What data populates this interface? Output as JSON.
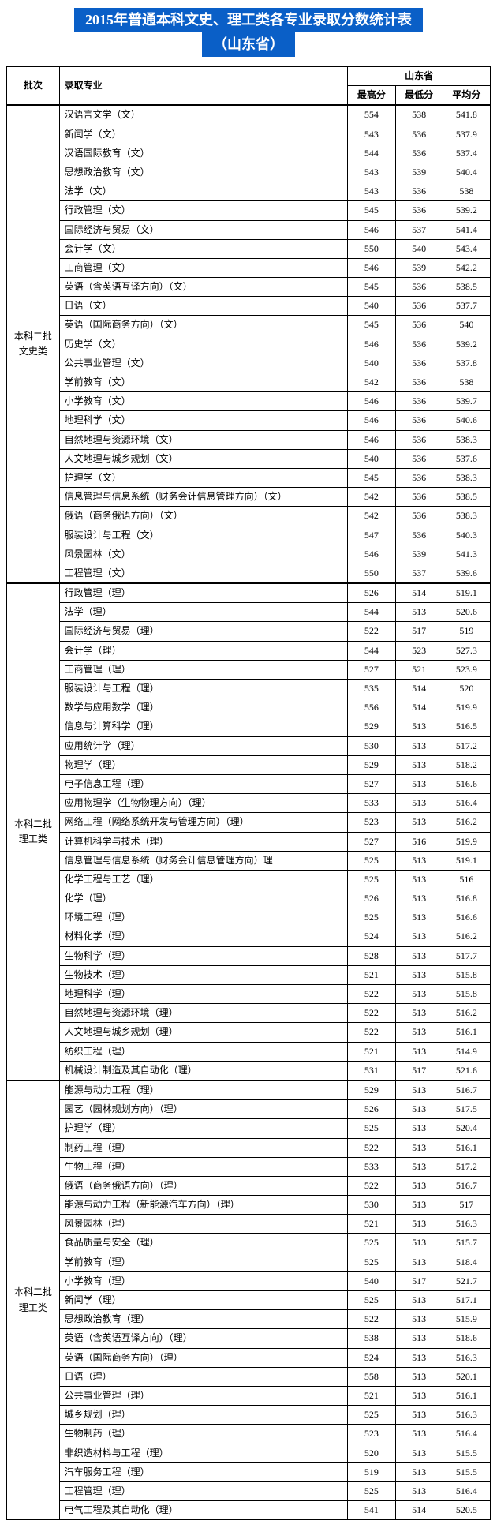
{
  "title_line1": "2015年普通本科文史、理工类各专业录取分数统计表",
  "title_line2": "（山东省）",
  "headers": {
    "batch": "批次",
    "major": "录取专业",
    "province": "山东省",
    "max": "最高分",
    "min": "最低分",
    "avg": "平均分"
  },
  "colors": {
    "title_bg": "#0a5fc7",
    "title_fg": "#ffffff",
    "border": "#000000",
    "bg": "#ffffff"
  },
  "groups": [
    {
      "batch": "本科二批\n文史类",
      "rows": [
        {
          "major": "汉语言文学（文）",
          "max": "554",
          "min": "538",
          "avg": "541.8"
        },
        {
          "major": "新闻学（文）",
          "max": "543",
          "min": "536",
          "avg": "537.9"
        },
        {
          "major": "汉语国际教育（文）",
          "max": "544",
          "min": "536",
          "avg": "537.4"
        },
        {
          "major": "思想政治教育（文）",
          "max": "543",
          "min": "539",
          "avg": "540.4"
        },
        {
          "major": "法学（文）",
          "max": "543",
          "min": "536",
          "avg": "538"
        },
        {
          "major": "行政管理（文）",
          "max": "545",
          "min": "536",
          "avg": "539.2"
        },
        {
          "major": "国际经济与贸易（文）",
          "max": "546",
          "min": "537",
          "avg": "541.4"
        },
        {
          "major": "会计学（文）",
          "max": "550",
          "min": "540",
          "avg": "543.4"
        },
        {
          "major": "工商管理（文）",
          "max": "546",
          "min": "539",
          "avg": "542.2"
        },
        {
          "major": "英语（含英语互译方向）（文）",
          "max": "545",
          "min": "536",
          "avg": "538.5"
        },
        {
          "major": "日语（文）",
          "max": "540",
          "min": "536",
          "avg": "537.7"
        },
        {
          "major": "英语（国际商务方向）（文）",
          "max": "545",
          "min": "536",
          "avg": "540"
        },
        {
          "major": "历史学（文）",
          "max": "546",
          "min": "536",
          "avg": "539.2"
        },
        {
          "major": "公共事业管理（文）",
          "max": "540",
          "min": "536",
          "avg": "537.8"
        },
        {
          "major": "学前教育（文）",
          "max": "542",
          "min": "536",
          "avg": "538"
        },
        {
          "major": "小学教育（文）",
          "max": "546",
          "min": "536",
          "avg": "539.7"
        },
        {
          "major": "地理科学（文）",
          "max": "546",
          "min": "536",
          "avg": "540.6"
        },
        {
          "major": "自然地理与资源环境（文）",
          "max": "546",
          "min": "536",
          "avg": "538.3"
        },
        {
          "major": "人文地理与城乡规划（文）",
          "max": "540",
          "min": "536",
          "avg": "537.6"
        },
        {
          "major": "护理学（文）",
          "max": "545",
          "min": "536",
          "avg": "538.3"
        },
        {
          "major": "信息管理与信息系统（财务会计信息管理方向）（文）",
          "max": "542",
          "min": "536",
          "avg": "538.5"
        },
        {
          "major": "俄语（商务俄语方向）（文）",
          "max": "542",
          "min": "536",
          "avg": "538.3"
        },
        {
          "major": "服装设计与工程（文）",
          "max": "547",
          "min": "536",
          "avg": "540.3"
        },
        {
          "major": "风景园林（文）",
          "max": "546",
          "min": "539",
          "avg": "541.3"
        },
        {
          "major": "工程管理（文）",
          "max": "550",
          "min": "537",
          "avg": "539.6"
        }
      ]
    },
    {
      "batch": "本科二批\n理工类",
      "rows": [
        {
          "major": "行政管理（理）",
          "max": "526",
          "min": "514",
          "avg": "519.1"
        },
        {
          "major": "法学（理）",
          "max": "544",
          "min": "513",
          "avg": "520.6"
        },
        {
          "major": "国际经济与贸易（理）",
          "max": "522",
          "min": "517",
          "avg": "519"
        },
        {
          "major": "会计学（理）",
          "max": "544",
          "min": "523",
          "avg": "527.3"
        },
        {
          "major": "工商管理（理）",
          "max": "527",
          "min": "521",
          "avg": "523.9"
        },
        {
          "major": "服装设计与工程（理）",
          "max": "535",
          "min": "514",
          "avg": "520"
        },
        {
          "major": "数学与应用数学（理）",
          "max": "556",
          "min": "514",
          "avg": "519.9"
        },
        {
          "major": "信息与计算科学（理）",
          "max": "529",
          "min": "513",
          "avg": "516.5"
        },
        {
          "major": "应用统计学（理）",
          "max": "530",
          "min": "513",
          "avg": "517.2"
        },
        {
          "major": "物理学（理）",
          "max": "529",
          "min": "513",
          "avg": "518.2"
        },
        {
          "major": "电子信息工程（理）",
          "max": "527",
          "min": "513",
          "avg": "516.6"
        },
        {
          "major": "应用物理学（生物物理方向）（理）",
          "max": "533",
          "min": "513",
          "avg": "516.4"
        },
        {
          "major": "网络工程（网络系统开发与管理方向）（理）",
          "max": "523",
          "min": "513",
          "avg": "516.2"
        },
        {
          "major": "计算机科学与技术（理）",
          "max": "527",
          "min": "516",
          "avg": "519.9"
        },
        {
          "major": "信息管理与信息系统（财务会计信息管理方向）理",
          "max": "525",
          "min": "513",
          "avg": "519.1"
        },
        {
          "major": "化学工程与工艺（理）",
          "max": "525",
          "min": "513",
          "avg": "516"
        },
        {
          "major": "化学（理）",
          "max": "526",
          "min": "513",
          "avg": "516.8"
        },
        {
          "major": "环境工程（理）",
          "max": "525",
          "min": "513",
          "avg": "516.6"
        },
        {
          "major": "材料化学（理）",
          "max": "524",
          "min": "513",
          "avg": "516.2"
        },
        {
          "major": "生物科学（理）",
          "max": "528",
          "min": "513",
          "avg": "517.7"
        },
        {
          "major": "生物技术（理）",
          "max": "521",
          "min": "513",
          "avg": "515.8"
        },
        {
          "major": "地理科学（理）",
          "max": "522",
          "min": "513",
          "avg": "515.8"
        },
        {
          "major": "自然地理与资源环境（理）",
          "max": "522",
          "min": "513",
          "avg": "516.2"
        },
        {
          "major": "人文地理与城乡规划（理）",
          "max": "522",
          "min": "513",
          "avg": "516.1"
        },
        {
          "major": "纺织工程（理）",
          "max": "521",
          "min": "513",
          "avg": "514.9"
        },
        {
          "major": "机械设计制造及其自动化（理）",
          "max": "531",
          "min": "517",
          "avg": "521.6"
        }
      ]
    },
    {
      "batch": "本科二批\n理工类",
      "rows": [
        {
          "major": "能源与动力工程（理）",
          "max": "529",
          "min": "513",
          "avg": "516.7"
        },
        {
          "major": "园艺（园林规划方向）（理）",
          "max": "526",
          "min": "513",
          "avg": "517.5"
        },
        {
          "major": "护理学（理）",
          "max": "525",
          "min": "513",
          "avg": "520.4"
        },
        {
          "major": "制药工程（理）",
          "max": "522",
          "min": "513",
          "avg": "516.1"
        },
        {
          "major": "生物工程（理）",
          "max": "533",
          "min": "513",
          "avg": "517.2"
        },
        {
          "major": "俄语（商务俄语方向）（理）",
          "max": "522",
          "min": "513",
          "avg": "516.7"
        },
        {
          "major": "能源与动力工程（新能源汽车方向）（理）",
          "max": "530",
          "min": "513",
          "avg": "517"
        },
        {
          "major": "风景园林（理）",
          "max": "521",
          "min": "513",
          "avg": "516.3"
        },
        {
          "major": "食品质量与安全（理）",
          "max": "525",
          "min": "513",
          "avg": "515.7"
        },
        {
          "major": "学前教育（理）",
          "max": "525",
          "min": "513",
          "avg": "518.4"
        },
        {
          "major": "小学教育（理）",
          "max": "540",
          "min": "517",
          "avg": "521.7"
        },
        {
          "major": "新闻学（理）",
          "max": "525",
          "min": "513",
          "avg": "517.1"
        },
        {
          "major": "思想政治教育（理）",
          "max": "522",
          "min": "513",
          "avg": "515.9"
        },
        {
          "major": "英语（含英语互译方向）（理）",
          "max": "538",
          "min": "513",
          "avg": "518.6"
        },
        {
          "major": "英语（国际商务方向）（理）",
          "max": "524",
          "min": "513",
          "avg": "516.3"
        },
        {
          "major": "日语（理）",
          "max": "558",
          "min": "513",
          "avg": "520.1"
        },
        {
          "major": "公共事业管理（理）",
          "max": "521",
          "min": "513",
          "avg": "516.1"
        },
        {
          "major": "城乡规划（理）",
          "max": "525",
          "min": "513",
          "avg": "516.3"
        },
        {
          "major": "生物制药（理）",
          "max": "523",
          "min": "513",
          "avg": "516.4"
        },
        {
          "major": "非织造材料与工程（理）",
          "max": "520",
          "min": "513",
          "avg": "515.5"
        },
        {
          "major": "汽车服务工程（理）",
          "max": "519",
          "min": "513",
          "avg": "515.5"
        },
        {
          "major": "工程管理（理）",
          "max": "525",
          "min": "513",
          "avg": "516.4"
        },
        {
          "major": "电气工程及其自动化（理）",
          "max": "541",
          "min": "514",
          "avg": "520.5"
        }
      ]
    }
  ]
}
